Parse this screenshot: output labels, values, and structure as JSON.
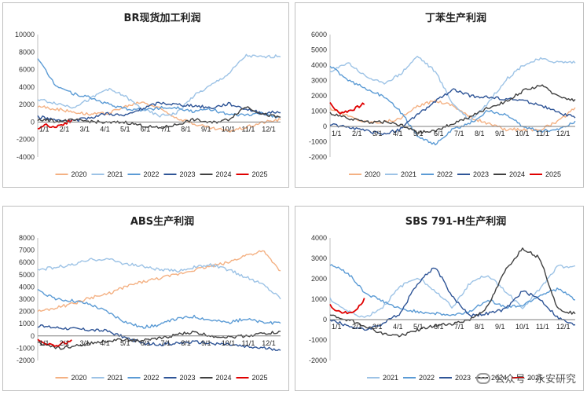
{
  "watermark": {
    "icon": "wechat-icon",
    "text": "公众号 · 永安研究"
  },
  "colors": {
    "2020": "#f4b183",
    "2021": "#9dc3e6",
    "2022": "#5b9bd5",
    "2023": "#2f5597",
    "2024": "#404040",
    "2025": "#e00000"
  },
  "chart_data": [
    {
      "type": "line",
      "title": "BR现货加工利润",
      "ylim": [
        -4000,
        10000
      ],
      "yticks": [
        -4000,
        -2000,
        0,
        2000,
        4000,
        6000,
        8000,
        10000
      ],
      "x_tick_labels": [
        "1/1",
        "2/1",
        "3/1",
        "4/1",
        "5/1",
        "6/1",
        "7/1",
        "8/1",
        "9/1",
        "10/1",
        "11/1",
        "12/1"
      ],
      "x_axis_at": 0,
      "legend_position": "bottom",
      "series": [
        {
          "name": "2020",
          "values": [
            1800,
            1500,
            1200,
            900,
            1000,
            1700,
            2300,
            1600,
            500,
            -200,
            -700,
            -1000,
            -600,
            0,
            300
          ]
        },
        {
          "name": "2021",
          "values": [
            2600,
            2200,
            1700,
            2600,
            3800,
            3000,
            1500,
            700,
            1000,
            3000,
            4200,
            5500,
            7600,
            7400,
            7600
          ]
        },
        {
          "name": "2022",
          "values": [
            7200,
            4300,
            3300,
            2800,
            2100,
            1500,
            1400,
            1600,
            1700,
            1200,
            1500,
            800,
            800,
            1000,
            500
          ]
        },
        {
          "name": "2023",
          "values": [
            600,
            300,
            100,
            500,
            1000,
            700,
            1500,
            2200,
            2000,
            1900,
            1600,
            2100,
            1500,
            1000,
            1200
          ]
        },
        {
          "name": "2024",
          "values": [
            300,
            100,
            200,
            100,
            -100,
            0,
            -400,
            -700,
            -300,
            300,
            -100,
            300,
            1800,
            900,
            500
          ]
        },
        {
          "name": "2025",
          "values": [
            -700,
            -300,
            -600,
            -200,
            200
          ],
          "x_end": 0.14
        }
      ]
    },
    {
      "type": "line",
      "title": "丁苯生产利润",
      "ylim": [
        -2000,
        6000
      ],
      "yticks": [
        -2000,
        -1000,
        0,
        1000,
        2000,
        3000,
        4000,
        5000,
        6000
      ],
      "x_tick_labels": [
        "1/1",
        "2/1",
        "3/1",
        "4/1",
        "5/1",
        "6/1",
        "7/1",
        "8/1",
        "9/1",
        "10/1",
        "11/1",
        "12/1"
      ],
      "x_axis_at": 0,
      "legend_position": "bottom",
      "series": [
        {
          "name": "2020",
          "values": [
            1200,
            700,
            300,
            300,
            500,
            1300,
            1700,
            1400,
            600,
            200,
            -200,
            -200,
            -200,
            300,
            1200
          ]
        },
        {
          "name": "2021",
          "values": [
            3500,
            4200,
            3300,
            2800,
            3400,
            4600,
            3600,
            1500,
            400,
            1500,
            3000,
            4000,
            4400,
            4200,
            4200
          ]
        },
        {
          "name": "2022",
          "values": [
            4000,
            3000,
            2500,
            2000,
            1000,
            -600,
            -1200,
            -200,
            200,
            1000,
            800,
            0,
            -300,
            -200,
            300
          ]
        },
        {
          "name": "2023",
          "values": [
            100,
            0,
            -300,
            -500,
            -200,
            800,
            1600,
            2400,
            2000,
            1900,
            1800,
            1700,
            1400,
            900,
            600
          ]
        },
        {
          "name": "2024",
          "values": [
            900,
            500,
            300,
            300,
            100,
            -400,
            -300,
            200,
            600,
            1200,
            1600,
            2300,
            2700,
            2000,
            1700
          ]
        },
        {
          "name": "2025",
          "values": [
            1500,
            900,
            1000,
            1200,
            1500
          ],
          "x_end": 0.14
        }
      ]
    },
    {
      "type": "line",
      "title": "ABS生产利润",
      "ylim": [
        -2000,
        8000
      ],
      "yticks": [
        -2000,
        -1000,
        0,
        1000,
        2000,
        3000,
        4000,
        5000,
        6000,
        7000,
        8000
      ],
      "x_tick_labels": [
        "1/1",
        "2/1",
        "3/1",
        "4/1",
        "5/1",
        "6/1",
        "7/1",
        "8/1",
        "9/1",
        "10/1",
        "11/1",
        "12/1"
      ],
      "x_axis_at": 0,
      "legend_position": "bottom",
      "series": [
        {
          "name": "2020",
          "values": [
            2000,
            2300,
            2600,
            3100,
            3400,
            4000,
            4400,
            4700,
            5000,
            5400,
            5700,
            6000,
            6600,
            6900,
            5300
          ]
        },
        {
          "name": "2021",
          "values": [
            5400,
            5600,
            5800,
            6200,
            6300,
            5900,
            5700,
            5400,
            5300,
            5600,
            5800,
            5400,
            4800,
            4200,
            3100
          ]
        },
        {
          "name": "2022",
          "values": [
            3700,
            3000,
            2900,
            2600,
            2000,
            1200,
            700,
            900,
            1400,
            1600,
            1300,
            1100,
            1400,
            1100,
            1000
          ]
        },
        {
          "name": "2023",
          "values": [
            800,
            700,
            600,
            500,
            400,
            -100,
            -600,
            -700,
            -600,
            -500,
            -600,
            -700,
            -900,
            -1000,
            -1100
          ]
        },
        {
          "name": "2024",
          "values": [
            -500,
            -1000,
            -900,
            -600,
            -400,
            -300,
            -400,
            -200,
            100,
            300,
            0,
            -100,
            0,
            200,
            300
          ]
        },
        {
          "name": "2025",
          "values": [
            -300,
            -600,
            -800,
            -600,
            -400
          ],
          "x_end": 0.14
        }
      ]
    },
    {
      "type": "line",
      "title": "SBS 791-H生产利润",
      "ylim": [
        -2000,
        4000
      ],
      "yticks": [
        -2000,
        -1000,
        0,
        1000,
        2000,
        3000,
        4000
      ],
      "x_tick_labels": [
        "1/1",
        "2/1",
        "3/1",
        "4/1",
        "5/1",
        "6/1",
        "7/1",
        "8/1",
        "9/1",
        "10/1",
        "11/1",
        "12/1"
      ],
      "x_axis_at": 0,
      "legend_position": "bottom",
      "series": [
        {
          "name": "2021",
          "values": [
            1000,
            400,
            100,
            600,
            1600,
            2100,
            1400,
            600,
            1800,
            2200,
            1400,
            600,
            1500,
            2600,
            2600
          ]
        },
        {
          "name": "2022",
          "values": [
            2700,
            2300,
            1300,
            900,
            500,
            400,
            300,
            200,
            400,
            1000,
            600,
            700,
            1200,
            1500,
            1000
          ]
        },
        {
          "name": "2023",
          "values": [
            0,
            -300,
            -500,
            -200,
            300,
            1800,
            2600,
            1100,
            200,
            300,
            500,
            1400,
            1000,
            100,
            -300
          ]
        },
        {
          "name": "2024",
          "values": [
            200,
            0,
            -300,
            -700,
            -800,
            -500,
            -300,
            -200,
            0,
            600,
            2400,
            3500,
            3000,
            500,
            300
          ]
        },
        {
          "name": "2025",
          "values": [
            700,
            400,
            300,
            400,
            1000
          ],
          "x_end": 0.14
        }
      ]
    }
  ]
}
